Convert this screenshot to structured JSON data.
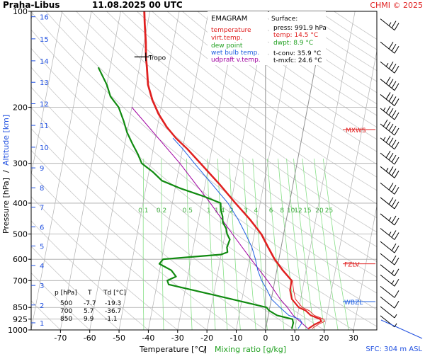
{
  "header": {
    "station": "Praha-Libus",
    "datetime": "11.08.2025 00 UTC",
    "provider": "CHMI © 2025"
  },
  "chart_data": {
    "type": "emagram",
    "xlabel_temp": "Temperature [°C]",
    "xlabel_sep": "/",
    "xlabel_mix": "Mixing ratio [g/kg]",
    "ylabel_p": "Pressure [hPa]",
    "ylabel_sep": "/",
    "ylabel_alt": "Altitude [km]",
    "sfc_label": "SFC: 304 m ASL",
    "xlim": [
      -80,
      38
    ],
    "ylim": [
      1000,
      100
    ],
    "x_ticks": [
      -70,
      -60,
      -50,
      -40,
      -30,
      -20,
      -10,
      0,
      10,
      20,
      30
    ],
    "p_ticks": [
      100,
      200,
      300,
      400,
      500,
      600,
      700,
      850,
      925,
      1000
    ],
    "alt_ticks": [
      {
        "km": "1",
        "p": 950
      },
      {
        "km": "2",
        "p": 835
      },
      {
        "km": "3",
        "p": 725
      },
      {
        "km": "4",
        "p": 628
      },
      {
        "km": "5",
        "p": 545
      },
      {
        "km": "6",
        "p": 475
      },
      {
        "km": "7",
        "p": 412
      },
      {
        "km": "8",
        "p": 358
      },
      {
        "km": "9",
        "p": 310
      },
      {
        "km": "10",
        "p": 267
      },
      {
        "km": "11",
        "p": 228
      },
      {
        "km": "12",
        "p": 195
      },
      {
        "km": "13",
        "p": 167
      },
      {
        "km": "14",
        "p": 143
      },
      {
        "km": "15",
        "p": 122
      },
      {
        "km": "16",
        "p": 104
      }
    ],
    "mixing_ratios": [
      "0.1",
      "0.2",
      "0.5",
      "1",
      "1.4",
      "2",
      "3",
      "4",
      "6",
      "8",
      "10",
      "12",
      "15",
      "20",
      "25"
    ],
    "legend": {
      "title": "EMAGRAM",
      "items": [
        {
          "label": "temperature",
          "color": "#e02020"
        },
        {
          "label": "virt.temp.",
          "color": "#e02020"
        },
        {
          "label": "dew point",
          "color": "#20a020"
        },
        {
          "label": "wet bulb temp.",
          "color": "#2060e0"
        },
        {
          "label": "udpraft v.temp.",
          "color": "#a000a0"
        }
      ]
    },
    "surface": {
      "title": "Surface:",
      "rows": [
        {
          "label": "press: 991.9 hPa",
          "color": "#000000"
        },
        {
          "label": "temp: 14.5 °C",
          "color": "#e02020"
        },
        {
          "label": "dwpt: 8.9 °C",
          "color": "#20a020"
        },
        {
          "label": "t-conv: 35.9 °C",
          "color": "#000000"
        },
        {
          "label": "t-mxfc: 24.6 °C",
          "color": "#000000"
        }
      ]
    },
    "levels": [
      {
        "label": "MXWS",
        "p": 235
      },
      {
        "label": "FZLV",
        "p": 620
      },
      {
        "label": "WBZL",
        "p": 815
      },
      {
        "label": "Tropo",
        "p": 139
      }
    ],
    "table": {
      "headers": [
        "p [hPa]",
        "T",
        "Td [°C]"
      ],
      "rows": [
        [
          "500",
          "-7.7",
          "-19.3"
        ],
        [
          "700",
          "5.7",
          "-36.7"
        ],
        [
          "850",
          "9.9",
          "-1.1"
        ]
      ]
    },
    "temperature": [
      [
        992,
        14.5
      ],
      [
        960,
        16.5
      ],
      [
        940,
        18.5
      ],
      [
        925,
        18.0
      ],
      [
        900,
        14.5
      ],
      [
        870,
        12.5
      ],
      [
        850,
        9.9
      ],
      [
        800,
        7.0
      ],
      [
        750,
        5.8
      ],
      [
        700,
        5.7
      ],
      [
        650,
        2.0
      ],
      [
        600,
        -1.5
      ],
      [
        550,
        -4.5
      ],
      [
        500,
        -7.7
      ],
      [
        450,
        -12.5
      ],
      [
        400,
        -18.5
      ],
      [
        350,
        -25.0
      ],
      [
        300,
        -33.0
      ],
      [
        270,
        -38.5
      ],
      [
        250,
        -43.0
      ],
      [
        230,
        -47.0
      ],
      [
        210,
        -50.5
      ],
      [
        190,
        -53.5
      ],
      [
        170,
        -56.0
      ],
      [
        150,
        -57.5
      ],
      [
        139,
        -58.5
      ],
      [
        125,
        -59.5
      ],
      [
        110,
        -61.0
      ],
      [
        100,
        -62.0
      ]
    ],
    "dewpoint": [
      [
        992,
        8.9
      ],
      [
        950,
        9.0
      ],
      [
        925,
        8.5
      ],
      [
        900,
        3.0
      ],
      [
        870,
        0.0
      ],
      [
        850,
        -1.1
      ],
      [
        830,
        -6.0
      ],
      [
        780,
        -19.0
      ],
      [
        720,
        -36.0
      ],
      [
        700,
        -36.7
      ],
      [
        680,
        -34.0
      ],
      [
        650,
        -36.0
      ],
      [
        620,
        -40.5
      ],
      [
        600,
        -39.5
      ],
      [
        590,
        -30.0
      ],
      [
        580,
        -20.0
      ],
      [
        570,
        -18.0
      ],
      [
        550,
        -18.5
      ],
      [
        520,
        -18.0
      ],
      [
        500,
        -19.3
      ],
      [
        480,
        -20.0
      ],
      [
        460,
        -21.5
      ],
      [
        440,
        -22.0
      ],
      [
        420,
        -23.0
      ],
      [
        400,
        -23.5
      ],
      [
        380,
        -30.0
      ],
      [
        360,
        -38.0
      ],
      [
        340,
        -45.0
      ],
      [
        320,
        -48.5
      ],
      [
        300,
        -53.0
      ],
      [
        280,
        -55.0
      ],
      [
        260,
        -57.5
      ],
      [
        240,
        -60.0
      ],
      [
        220,
        -62.0
      ],
      [
        200,
        -64.5
      ],
      [
        185,
        -68.0
      ],
      [
        170,
        -70.0
      ],
      [
        150,
        -74.0
      ]
    ],
    "wetbulb": [
      [
        992,
        11.0
      ],
      [
        950,
        12.0
      ],
      [
        925,
        11.0
      ],
      [
        900,
        7.0
      ],
      [
        850,
        3.5
      ],
      [
        800,
        0.0
      ],
      [
        750,
        -2.0
      ],
      [
        700,
        -4.5
      ],
      [
        650,
        -6.5
      ],
      [
        600,
        -8.0
      ],
      [
        550,
        -10.0
      ],
      [
        500,
        -13.0
      ],
      [
        450,
        -16.5
      ],
      [
        400,
        -21.0
      ],
      [
        350,
        -27.5
      ],
      [
        300,
        -35.0
      ],
      [
        270,
        -40.0
      ],
      [
        250,
        -44.0
      ]
    ],
    "parcel": [
      [
        992,
        14.5
      ],
      [
        900,
        8.5
      ],
      [
        850,
        6.0
      ],
      [
        800,
        3.0
      ],
      [
        700,
        -2.5
      ],
      [
        600,
        -9.5
      ],
      [
        500,
        -17.5
      ],
      [
        400,
        -27.0
      ],
      [
        300,
        -40.0
      ],
      [
        250,
        -49.0
      ],
      [
        200,
        -60.0
      ]
    ],
    "winds": [
      {
        "p": 110,
        "kt": 25
      },
      {
        "p": 130,
        "kt": 30
      },
      {
        "p": 150,
        "kt": 35
      },
      {
        "p": 170,
        "kt": 40
      },
      {
        "p": 190,
        "kt": 40
      },
      {
        "p": 210,
        "kt": 45
      },
      {
        "p": 235,
        "kt": 50
      },
      {
        "p": 260,
        "kt": 45
      },
      {
        "p": 290,
        "kt": 40
      },
      {
        "p": 320,
        "kt": 35
      },
      {
        "p": 360,
        "kt": 30
      },
      {
        "p": 400,
        "kt": 30
      },
      {
        "p": 450,
        "kt": 25
      },
      {
        "p": 500,
        "kt": 25
      },
      {
        "p": 550,
        "kt": 20
      },
      {
        "p": 600,
        "kt": 20
      },
      {
        "p": 650,
        "kt": 15
      },
      {
        "p": 700,
        "kt": 15
      },
      {
        "p": 760,
        "kt": 10
      },
      {
        "p": 820,
        "kt": 10
      },
      {
        "p": 880,
        "kt": 5
      },
      {
        "p": 940,
        "kt": 5
      }
    ],
    "grid": true
  }
}
